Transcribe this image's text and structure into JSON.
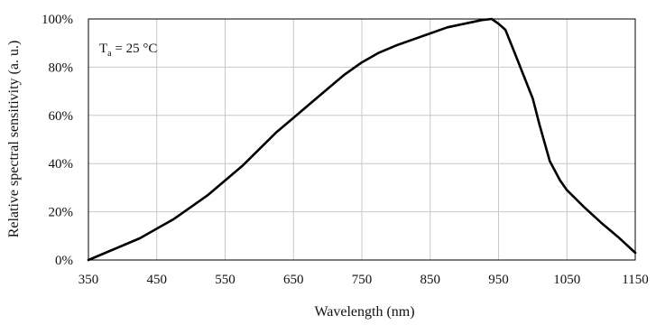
{
  "chart_data": {
    "type": "line",
    "title": "",
    "xlabel": "Wavelength (nm)",
    "ylabel": "Relative spectral sensitivity  (a. u.)",
    "xlim": [
      350,
      1150
    ],
    "ylim": [
      0,
      100
    ],
    "xticks": [
      350,
      450,
      550,
      650,
      750,
      850,
      950,
      1050,
      1150
    ],
    "yticks": [
      0,
      20,
      40,
      60,
      80,
      100
    ],
    "xtick_labels": [
      "350",
      "450",
      "550",
      "650",
      "750",
      "850",
      "950",
      "1050",
      "1150"
    ],
    "ytick_labels": [
      "0%",
      "20%",
      "40%",
      "60%",
      "80%",
      "100%"
    ],
    "grid": true,
    "legend": "none",
    "annotation": {
      "base": "T",
      "sub": "a",
      "rest": " = 25 °C",
      "placement": "top-left"
    },
    "line_color": "#000000",
    "grid_color": "#c8c8c8",
    "series": [
      {
        "x": [
          350,
          375,
          400,
          425,
          450,
          475,
          500,
          525,
          550,
          575,
          600,
          625,
          650,
          675,
          700,
          725,
          750,
          775,
          800,
          825,
          850,
          875,
          900,
          925,
          940,
          950,
          960,
          975,
          1000,
          1010,
          1025,
          1040,
          1050,
          1075,
          1100,
          1125,
          1150
        ],
        "y": [
          0,
          3,
          6,
          9,
          13,
          17,
          22,
          27,
          33,
          39,
          46,
          53,
          59,
          65,
          71,
          77,
          82,
          86,
          89,
          91.5,
          94,
          96.5,
          98,
          99.5,
          100,
          98,
          95.5,
          85,
          67,
          56,
          41,
          33,
          29,
          22,
          15.5,
          9.5,
          3
        ]
      }
    ]
  }
}
